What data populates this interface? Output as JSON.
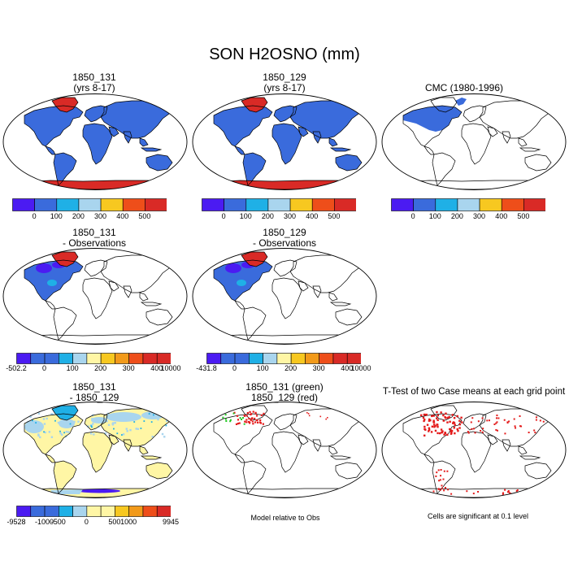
{
  "figure": {
    "title": "SON H2OSNO (mm)",
    "note_model_rel_obs": "Model relative to Obs",
    "note_significance": "Cells are significant at 0.1 level"
  },
  "colors": {
    "c0": "#4b1bf2",
    "c1": "#3a6bdc",
    "c2": "#1fb0e6",
    "c3": "#a9d5ee",
    "c4": "#fff6a5",
    "c5": "#f7c820",
    "c6": "#f29a1a",
    "c7": "#ee4e1a",
    "c8": "#d92a26",
    "land_line": "#000000",
    "green": "#1ec81e",
    "red": "#e41b1b"
  },
  "chart_data": [
    {
      "type": "heatmap",
      "projection": "robinson",
      "title_line1": "1850_131",
      "title_line2": "(yrs 8-17)",
      "colorbar_labels": [
        "0",
        "100",
        "200",
        "300",
        "400",
        "500"
      ],
      "colorbar_n": 8
    },
    {
      "type": "heatmap",
      "projection": "robinson",
      "title_line1": "1850_129",
      "title_line2": "(yrs 8-17)",
      "colorbar_labels": [
        "0",
        "100",
        "200",
        "300",
        "400",
        "500"
      ],
      "colorbar_n": 8
    },
    {
      "type": "heatmap",
      "projection": "robinson",
      "title_line1": "CMC (1980-1996)",
      "title_line2": "",
      "colorbar_labels": [
        "0",
        "100",
        "200",
        "300",
        "400",
        "500"
      ],
      "colorbar_n": 8
    },
    {
      "type": "heatmap",
      "projection": "robinson",
      "title_line1": "1850_131",
      "title_line2": "- Observations",
      "colorbar_labels": [
        "-502.2",
        "0",
        "100",
        "200",
        "300",
        "400",
        "10000"
      ],
      "colorbar_n": 11
    },
    {
      "type": "heatmap",
      "projection": "robinson",
      "title_line1": "1850_129",
      "title_line2": "- Observations",
      "colorbar_labels": [
        "-431.8",
        "0",
        "100",
        "200",
        "300",
        "400",
        "10000"
      ],
      "colorbar_n": 11
    },
    {
      "type": "heatmap",
      "projection": "robinson",
      "title_line1": "1850_131",
      "title_line2": "- 1850_129",
      "colorbar_labels": [
        "-9528",
        "-1000",
        "-500",
        "0",
        "500",
        "1000",
        "9945"
      ],
      "colorbar_n": 11
    },
    {
      "type": "heatmap",
      "projection": "robinson",
      "title_line1": "1850_131 (green)",
      "title_line2": "1850_129 (red)"
    },
    {
      "type": "heatmap",
      "projection": "robinson",
      "title_line1": "T-Test of two Case means at each grid point",
      "title_line2": ""
    }
  ]
}
